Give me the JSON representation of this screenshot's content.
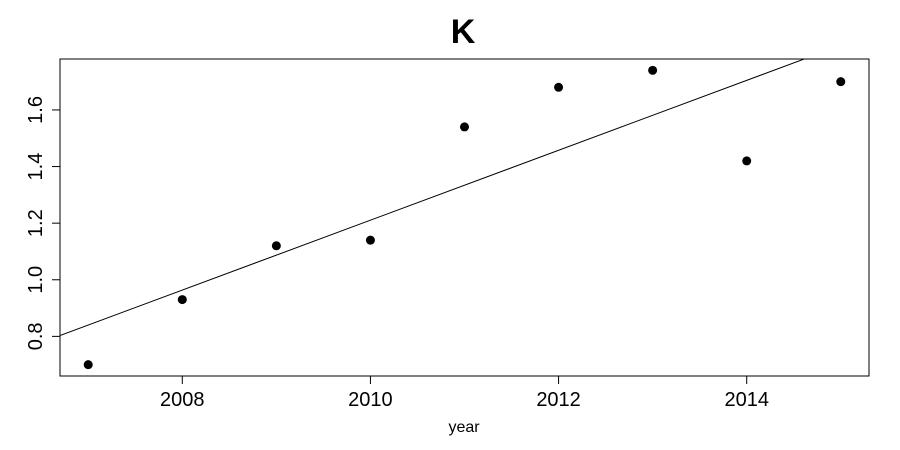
{
  "chart_data": {
    "type": "scatter",
    "title": "K",
    "xlabel": "year",
    "ylabel": "",
    "xlim": [
      2006.7,
      2015.3
    ],
    "ylim": [
      0.66,
      1.78
    ],
    "x_ticks": [
      2008,
      2010,
      2012,
      2014
    ],
    "x_tick_labels": [
      "2008",
      "2010",
      "2012",
      "2014"
    ],
    "y_ticks": [
      0.8,
      1.0,
      1.2,
      1.4,
      1.6
    ],
    "y_tick_labels": [
      "0.8",
      "1.0",
      "1.2",
      "1.4",
      "1.6"
    ],
    "grid": false,
    "points": {
      "x": [
        2007,
        2008,
        2009,
        2010,
        2011,
        2012,
        2013,
        2014,
        2015
      ],
      "y": [
        0.7,
        0.93,
        1.12,
        1.14,
        1.54,
        1.68,
        1.74,
        1.42,
        1.7
      ]
    },
    "trend_line": {
      "intercept_at_2007": 0.84,
      "slope_per_year": 0.1235
    },
    "colors": {
      "points": "#000000",
      "line": "#000000",
      "frame": "#000000"
    }
  }
}
